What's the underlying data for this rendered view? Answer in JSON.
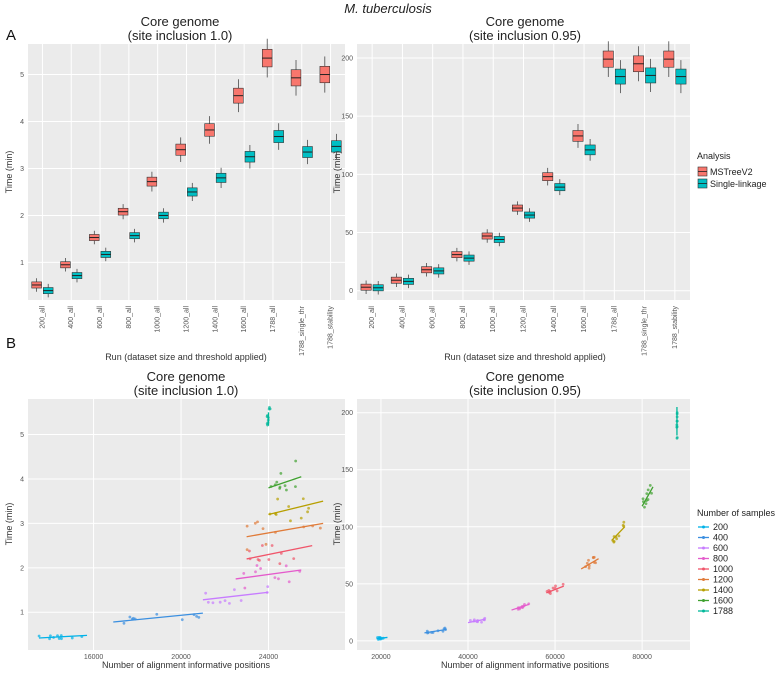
{
  "figure": {
    "title": "M. tuberculosis",
    "panel_a_label": "A",
    "panel_b_label": "B"
  },
  "colors": {
    "panel_bg": "#ebebeb",
    "grid": "#ffffff",
    "mstree": "#f8766d",
    "single": "#00bfc4",
    "samples": {
      "200": "#00b2e8",
      "400": "#3b8fe0",
      "600": "#c77cff",
      "800": "#e45bcc",
      "1000": "#f0556a",
      "1200": "#e07b39",
      "1400": "#b79f00",
      "1600": "#3fa12f",
      "1788": "#00b89a"
    }
  },
  "legend_a": {
    "title": "Analysis",
    "items": [
      "MSTreeV2",
      "Single-linkage"
    ]
  },
  "legend_b": {
    "title": "Number of samples",
    "items": [
      "200",
      "400",
      "600",
      "800",
      "1000",
      "1200",
      "1400",
      "1600",
      "1788"
    ]
  },
  "chart_data": [
    {
      "id": "a1",
      "type": "box",
      "title": "Core genome",
      "subtitle": "(site inclusion 1.0)",
      "xlabel": "Run (dataset size and threshold applied)",
      "ylabel": "Time (min)",
      "categories": [
        "200_all",
        "400_all",
        "600_all",
        "800_all",
        "1000_all",
        "1200_all",
        "1400_all",
        "1600_all",
        "1788_all",
        "1788_single_thr",
        "1788_stability"
      ],
      "yticks": [
        1,
        2,
        3,
        4,
        5
      ],
      "ylim": [
        0.2,
        5.65
      ],
      "series": [
        {
          "name": "MSTreeV2",
          "color": "mstree",
          "median": [
            0.52,
            0.95,
            1.53,
            2.08,
            2.72,
            3.4,
            3.82,
            4.55,
            5.35,
            4.93,
            5.0
          ]
        },
        {
          "name": "Single-linkage",
          "color": "single",
          "median": [
            0.4,
            0.72,
            1.17,
            1.57,
            2.0,
            2.5,
            2.8,
            3.25,
            3.68,
            3.35,
            3.47
          ]
        }
      ]
    },
    {
      "id": "a2",
      "type": "box",
      "title": "Core genome",
      "subtitle": "(site inclusion 0.95)",
      "xlabel": "Run (dataset size and threshold applied)",
      "ylabel": "Time (min)",
      "categories": [
        "200_all",
        "400_all",
        "600_all",
        "800_all",
        "1000_all",
        "1200_all",
        "1400_all",
        "1600_all",
        "1788_all",
        "1788_single_thr",
        "1788_stability"
      ],
      "yticks": [
        0,
        50,
        100,
        150,
        200
      ],
      "ylim": [
        -8,
        212
      ],
      "series": [
        {
          "name": "MSTreeV2",
          "color": "mstree",
          "median": [
            3,
            9,
            18,
            31,
            47,
            71,
            98,
            133,
            199,
            195,
            199
          ]
        },
        {
          "name": "Single-linkage",
          "color": "single",
          "median": [
            2.5,
            8,
            17,
            28,
            44,
            65,
            89,
            121,
            184,
            185,
            184
          ]
        }
      ]
    },
    {
      "id": "b1",
      "type": "scatter",
      "title": "Core genome",
      "subtitle": "(site inclusion 1.0)",
      "xlabel": "Number of alignment informative positions",
      "ylabel": "Time (min)",
      "xticks": [
        16000,
        20000,
        24000
      ],
      "yticks": [
        1,
        2,
        3,
        4,
        5
      ],
      "xlim": [
        13000,
        27500
      ],
      "ylim": [
        0.15,
        5.8
      ],
      "groups": [
        {
          "n": "200",
          "x": [
            13500,
            15700
          ],
          "y": [
            0.42,
            0.48
          ],
          "spread": 0.06
        },
        {
          "n": "400",
          "x": [
            16900,
            21000
          ],
          "y": [
            0.78,
            0.98
          ],
          "spread": 0.12
        },
        {
          "n": "600",
          "x": [
            21000,
            24000
          ],
          "y": [
            1.28,
            1.45
          ],
          "spread": 0.15
        },
        {
          "n": "800",
          "x": [
            22500,
            25500
          ],
          "y": [
            1.75,
            1.95
          ],
          "spread": 0.25
        },
        {
          "n": "1000",
          "x": [
            23000,
            26000
          ],
          "y": [
            2.2,
            2.5
          ],
          "spread": 0.28
        },
        {
          "n": "1200",
          "x": [
            23000,
            26500
          ],
          "y": [
            2.7,
            3.0
          ],
          "spread": 0.3
        },
        {
          "n": "1400",
          "x": [
            24000,
            26500
          ],
          "y": [
            3.2,
            3.5
          ],
          "spread": 0.3
        },
        {
          "n": "1600",
          "x": [
            24000,
            25500
          ],
          "y": [
            3.8,
            4.05
          ],
          "spread": 0.45
        },
        {
          "n": "1788",
          "x": [
            24000,
            24000
          ],
          "y": [
            5.2,
            5.5
          ],
          "spread": 0.15
        }
      ]
    },
    {
      "id": "b2",
      "type": "scatter",
      "title": "Core genome",
      "subtitle": "(site inclusion 0.95)",
      "xlabel": "Number of alignment informative positions",
      "ylabel": "Time (min)",
      "xticks": [
        20000,
        40000,
        60000,
        80000
      ],
      "yticks": [
        0,
        50,
        100,
        150,
        200
      ],
      "xlim": [
        14500,
        91000
      ],
      "ylim": [
        -8,
        212
      ],
      "groups": [
        {
          "n": "200",
          "x": [
            19000,
            21500
          ],
          "y": [
            2,
            3
          ],
          "spread": 1
        },
        {
          "n": "400",
          "x": [
            30000,
            35000
          ],
          "y": [
            7,
            10
          ],
          "spread": 1.5
        },
        {
          "n": "600",
          "x": [
            40000,
            44000
          ],
          "y": [
            16,
            19
          ],
          "spread": 2
        },
        {
          "n": "800",
          "x": [
            50000,
            54000
          ],
          "y": [
            27,
            32
          ],
          "spread": 2
        },
        {
          "n": "1000",
          "x": [
            58000,
            62000
          ],
          "y": [
            42,
            48
          ],
          "spread": 3
        },
        {
          "n": "1200",
          "x": [
            66000,
            70000
          ],
          "y": [
            63,
            72
          ],
          "spread": 4
        },
        {
          "n": "1400",
          "x": [
            73000,
            76000
          ],
          "y": [
            88,
            100
          ],
          "spread": 5
        },
        {
          "n": "1600",
          "x": [
            80000,
            82500
          ],
          "y": [
            118,
            135
          ],
          "spread": 6
        },
        {
          "n": "1788",
          "x": [
            88000,
            88000
          ],
          "y": [
            180,
            205
          ],
          "spread": 6
        }
      ]
    }
  ]
}
